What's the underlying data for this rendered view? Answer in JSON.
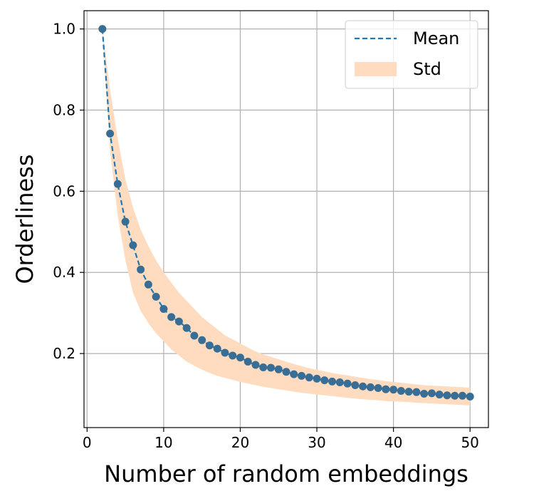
{
  "chart_data": {
    "type": "line",
    "xlabel": "Number of random embeddings",
    "ylabel": "Orderliness",
    "xlim": [
      -0.4,
      52.4
    ],
    "ylim": [
      0.0175,
      1.045
    ],
    "xticks": [
      0,
      10,
      20,
      30,
      40,
      50
    ],
    "yticks": [
      0.2,
      0.4,
      0.6,
      0.8,
      1.0
    ],
    "xtick_labels": [
      "0",
      "10",
      "20",
      "30",
      "40",
      "50"
    ],
    "ytick_labels": [
      "0.2",
      "0.4",
      "0.6",
      "0.8",
      "1.0"
    ],
    "grid": true,
    "legend_position": "top-right",
    "colors": {
      "mean": "#1f77b4",
      "point": "#386e96",
      "std": "#ffdcbf"
    },
    "series": [
      {
        "name": "Mean",
        "style": "dashed-line-with-markers"
      },
      {
        "name": "Std",
        "style": "shaded-band"
      }
    ],
    "x": [
      2,
      3,
      4,
      5,
      6,
      7,
      8,
      9,
      10,
      11,
      12,
      13,
      14,
      15,
      16,
      17,
      18,
      19,
      20,
      21,
      22,
      23,
      24,
      25,
      26,
      27,
      28,
      29,
      30,
      31,
      32,
      33,
      34,
      35,
      36,
      37,
      38,
      39,
      40,
      41,
      42,
      43,
      44,
      45,
      46,
      47,
      48,
      49,
      50
    ],
    "mean": [
      1.0,
      0.742,
      0.618,
      0.525,
      0.467,
      0.407,
      0.37,
      0.34,
      0.31,
      0.29,
      0.279,
      0.263,
      0.244,
      0.233,
      0.22,
      0.212,
      0.202,
      0.195,
      0.19,
      0.18,
      0.172,
      0.166,
      0.165,
      0.161,
      0.155,
      0.149,
      0.145,
      0.141,
      0.138,
      0.134,
      0.131,
      0.129,
      0.126,
      0.122,
      0.119,
      0.117,
      0.115,
      0.112,
      0.111,
      0.108,
      0.106,
      0.105,
      0.101,
      0.102,
      0.099,
      0.097,
      0.096,
      0.096,
      0.094
    ],
    "std_upper": [
      1.0,
      0.85,
      0.73,
      0.63,
      0.56,
      0.505,
      0.465,
      0.43,
      0.4,
      0.375,
      0.35,
      0.33,
      0.31,
      0.29,
      0.275,
      0.26,
      0.245,
      0.235,
      0.225,
      0.215,
      0.205,
      0.198,
      0.192,
      0.186,
      0.18,
      0.174,
      0.169,
      0.164,
      0.16,
      0.156,
      0.152,
      0.149,
      0.146,
      0.143,
      0.14,
      0.137,
      0.135,
      0.132,
      0.13,
      0.128,
      0.126,
      0.124,
      0.122,
      0.121,
      0.12,
      0.119,
      0.118,
      0.117,
      0.116
    ],
    "std_lower": [
      1.0,
      0.7,
      0.54,
      0.43,
      0.35,
      0.305,
      0.275,
      0.25,
      0.23,
      0.21,
      0.195,
      0.18,
      0.17,
      0.16,
      0.152,
      0.145,
      0.14,
      0.135,
      0.13,
      0.126,
      0.122,
      0.118,
      0.115,
      0.112,
      0.109,
      0.106,
      0.103,
      0.101,
      0.099,
      0.097,
      0.095,
      0.093,
      0.091,
      0.089,
      0.087,
      0.086,
      0.085,
      0.083,
      0.082,
      0.081,
      0.08,
      0.079,
      0.078,
      0.077,
      0.076,
      0.075,
      0.074,
      0.073,
      0.072
    ]
  }
}
